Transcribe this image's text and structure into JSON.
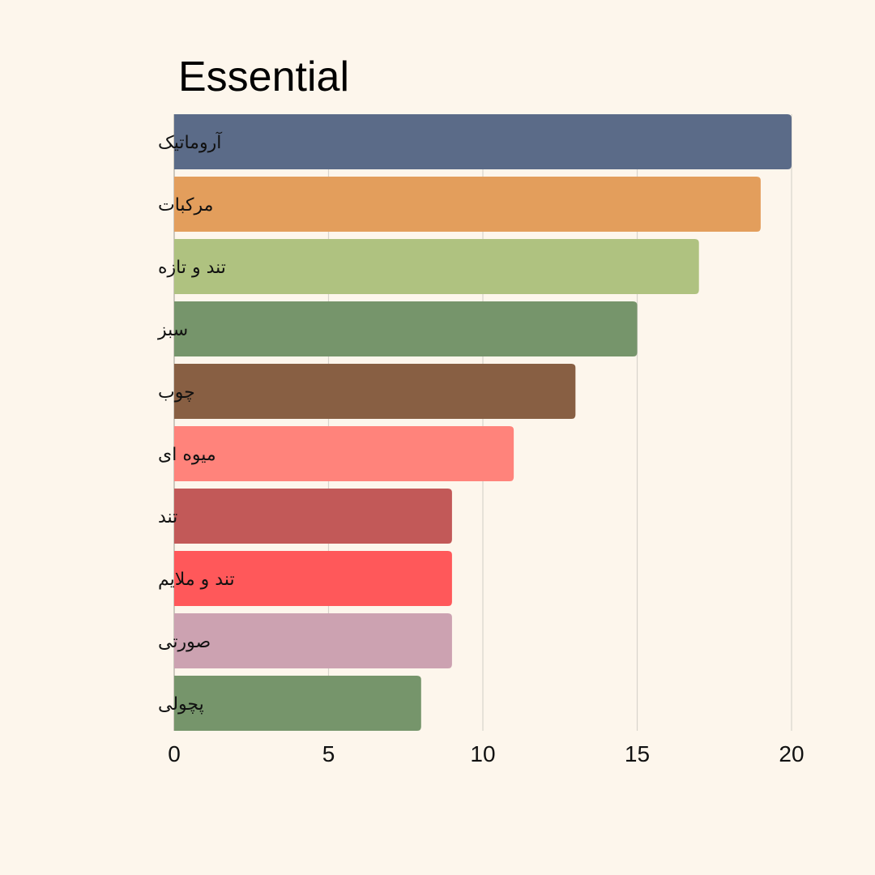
{
  "chart_data": {
    "type": "bar",
    "orientation": "horizontal",
    "title": "Essential",
    "xlabel": "",
    "ylabel": "",
    "categories": [
      "آروماتیک",
      "مرکبات",
      "تند و تازه",
      "سبز",
      "چوب",
      "میوه ای",
      "تند",
      "تند و ملایم",
      "صورتی",
      "پچولی"
    ],
    "values": [
      20,
      19,
      17,
      15,
      13,
      11,
      9,
      9,
      9,
      8
    ],
    "colors": [
      "#5b6b88",
      "#e39e5c",
      "#afc280",
      "#76956b",
      "#885f43",
      "#ff837b",
      "#c25958",
      "#ff585a",
      "#cca2b1",
      "#76956b"
    ],
    "xlim": [
      0,
      20
    ],
    "xticks": [
      "0",
      "5",
      "10",
      "15",
      "20"
    ],
    "grid": "vertical"
  }
}
